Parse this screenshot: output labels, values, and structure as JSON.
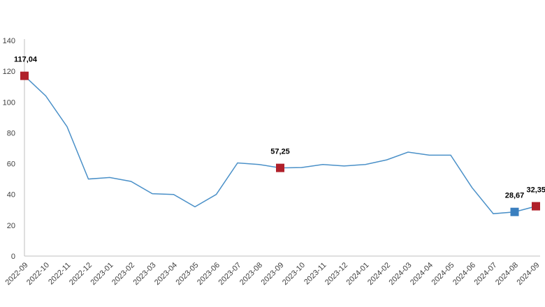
{
  "chart_data": {
    "type": "line",
    "title": "",
    "xlabel": "",
    "ylabel": "",
    "ylim": [
      0,
      140
    ],
    "yticks": [
      0,
      20,
      40,
      60,
      80,
      100,
      120,
      140
    ],
    "grid": false,
    "categories": [
      "2022-09",
      "2022-10",
      "2022-11",
      "2022-12",
      "2023-01",
      "2023-02",
      "2023-03",
      "2023-04",
      "2023-05",
      "2023-06",
      "2023-07",
      "2023-08",
      "2023-09",
      "2023-10",
      "2023-11",
      "2023-12",
      "2024-01",
      "2024-02",
      "2024-03",
      "2024-04",
      "2024-05",
      "2024-06",
      "2024-07",
      "2024-08",
      "2024-09"
    ],
    "series": [
      {
        "values": [
          117.04,
          104,
          84,
          50,
          51,
          48.5,
          40.5,
          40,
          32,
          40,
          60.5,
          59.5,
          57.25,
          57.5,
          59.5,
          58.5,
          59.5,
          62.5,
          67.5,
          65.5,
          65.5,
          44.5,
          27.5,
          28.67,
          32.35
        ],
        "color": "#4a90c8"
      }
    ],
    "highlighted_points": [
      {
        "index": 0,
        "label": "117,04",
        "color": "#b0202a"
      },
      {
        "index": 12,
        "label": "57,25",
        "color": "#b0202a"
      },
      {
        "index": 23,
        "label": "28,67",
        "color": "#3a7fbf"
      },
      {
        "index": 24,
        "label": "32,35",
        "color": "#b0202a"
      }
    ]
  }
}
